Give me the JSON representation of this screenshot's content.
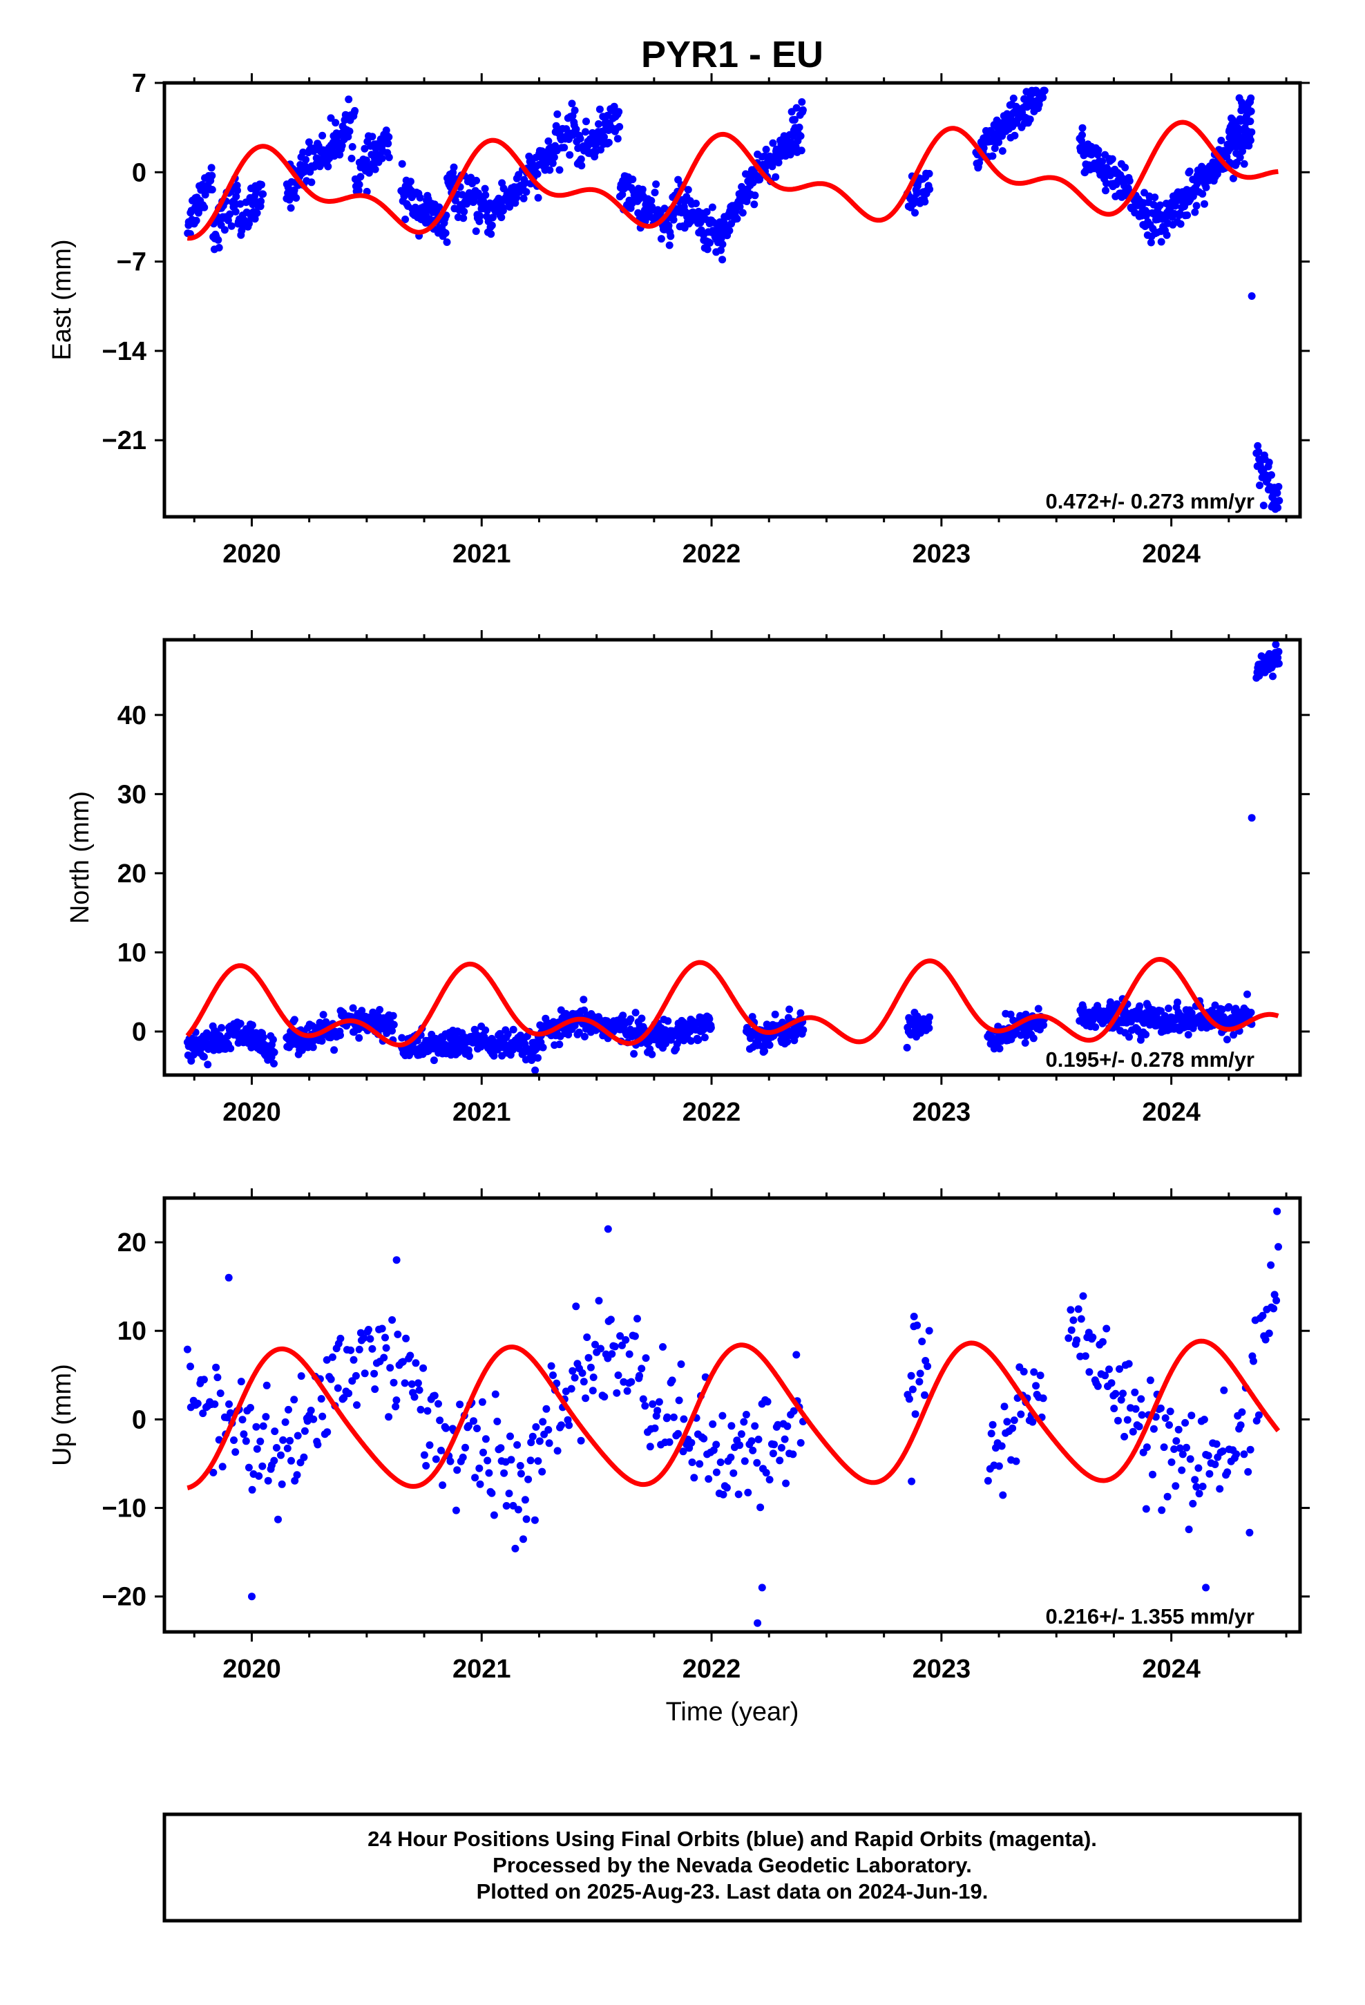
{
  "title": "PYR1 - EU",
  "caption": [
    "24 Hour Positions Using Final Orbits (blue) and Rapid Orbits (magenta).",
    "Processed by the Nevada Geodetic Laboratory.",
    "Plotted on 2025-Aug-23. Last data on 2024-Jun-19."
  ],
  "colors": {
    "data": "#0000ff",
    "model": "#ff0000",
    "frame": "#000000",
    "background": "#ffffff"
  },
  "chart_data": [
    {
      "type": "scatter",
      "name": "east",
      "ylabel": "East (mm)",
      "xlabel": "",
      "xlim": [
        2019.62,
        2024.56
      ],
      "ylim": [
        -27,
        7
      ],
      "yticks": [
        7,
        0,
        -7,
        -14,
        -21
      ],
      "xticks": [
        2020,
        2021,
        2022,
        2023,
        2024
      ],
      "rate": "0.472+/- 0.273 mm/yr",
      "segments": [
        {
          "x": [
            2019.72,
            2020.05
          ],
          "y": [
            [
              -4,
              0
            ],
            [
              -4.8,
              -1.6
            ],
            [
              -4,
              -2
            ]
          ]
        },
        {
          "x": [
            2020.15,
            2020.6
          ],
          "y": [
            [
              -1.5,
              2
            ],
            [
              1,
              4.2
            ],
            [
              -0.5,
              2.5
            ]
          ]
        },
        {
          "x": [
            2020.65,
            2021.05
          ],
          "y": [
            [
              -1.5,
              -4.5
            ],
            [
              -1,
              -3.5
            ]
          ]
        },
        {
          "x": [
            2021.05,
            2021.6
          ],
          "y": [
            [
              -3,
              0
            ],
            [
              0,
              4
            ],
            [
              1.5,
              4.2
            ]
          ]
        },
        {
          "x": [
            2021.6,
            2022.05
          ],
          "y": [
            [
              -1,
              -4.5
            ],
            [
              -2,
              -5.5
            ]
          ]
        },
        {
          "x": [
            2022.05,
            2022.4
          ],
          "y": [
            [
              -4.5,
              1
            ],
            [
              0,
              4
            ]
          ]
        },
        {
          "x": [
            2022.85,
            2022.95
          ],
          "y": [
            [
              -2,
              -1
            ]
          ]
        },
        {
          "x": [
            2023.15,
            2023.45
          ],
          "y": [
            [
              1,
              6.5
            ]
          ]
        },
        {
          "x": [
            2023.6,
            2024.35
          ],
          "y": [
            [
              2,
              -4.5
            ],
            [
              -3.5,
              3
            ]
          ]
        },
        {
          "x": [
            2024.25,
            2024.35
          ],
          "y": [
            [
              3,
              5.5
            ]
          ]
        },
        {
          "x": [
            2024.37,
            2024.47
          ],
          "y": [
            [
              -22.5,
              -25.5
            ]
          ]
        }
      ],
      "outliers": [
        {
          "x": 2024.35,
          "y": -9.7
        }
      ],
      "model": {
        "mean": -0.8,
        "trend": 0.47,
        "t0": 2022.1,
        "a1": 2.5,
        "p1": 0.85,
        "a2": 1.6,
        "p2": 1.3
      }
    },
    {
      "type": "scatter",
      "name": "north",
      "ylabel": "North (mm)",
      "xlabel": "",
      "xlim": [
        2019.62,
        2024.56
      ],
      "ylim": [
        -5.5,
        49.5
      ],
      "yticks": [
        40,
        30,
        20,
        10,
        0
      ],
      "xticks": [
        2020,
        2021,
        2022,
        2023,
        2024
      ],
      "rate": "0.195+/- 0.278 mm/yr",
      "segments": [
        {
          "x": [
            2019.72,
            2020.1
          ],
          "y": [
            [
              -2,
              -1
            ],
            [
              0,
              -2
            ]
          ]
        },
        {
          "x": [
            2020.15,
            2020.62
          ],
          "y": [
            [
              -1,
              0
            ],
            [
              1,
              1
            ]
          ]
        },
        {
          "x": [
            2020.65,
            2021.25
          ],
          "y": [
            [
              -2,
              -1.5
            ],
            [
              -1,
              -2.5
            ]
          ]
        },
        {
          "x": [
            2021.25,
            2021.7
          ],
          "y": [
            [
              -0.5,
              1.5
            ],
            [
              1,
              0
            ]
          ]
        },
        {
          "x": [
            2021.7,
            2022.0
          ],
          "y": [
            [
              -1,
              1
            ]
          ]
        },
        {
          "x": [
            2022.15,
            2022.4
          ],
          "y": [
            [
              -0.5,
              0.5
            ]
          ]
        },
        {
          "x": [
            2022.85,
            2022.95
          ],
          "y": [
            [
              1,
              1
            ]
          ]
        },
        {
          "x": [
            2023.2,
            2023.45
          ],
          "y": [
            [
              -1,
              1.5
            ]
          ]
        },
        {
          "x": [
            2023.6,
            2024.35
          ],
          "y": [
            [
              2,
              1.5
            ],
            [
              1.5,
              1.5
            ]
          ]
        },
        {
          "x": [
            2024.37,
            2024.47
          ],
          "y": [
            [
              45,
              48
            ]
          ]
        }
      ],
      "outliers": [
        {
          "x": 2024.35,
          "y": 27
        }
      ],
      "model": {
        "mean": 2.5,
        "trend": 0.2,
        "t0": 2022.1,
        "a1": 3.6,
        "p1": 1.75,
        "a2": 2.7,
        "p2": 2.3
      }
    },
    {
      "type": "scatter",
      "name": "up",
      "ylabel": "Up (mm)",
      "xlabel": "Time (year)",
      "xlim": [
        2019.62,
        2024.56
      ],
      "ylim": [
        -24,
        25
      ],
      "yticks": [
        20,
        10,
        0,
        -10,
        -20
      ],
      "xticks": [
        2020,
        2021,
        2022,
        2023,
        2024
      ],
      "rate": "0.216+/- 1.355 mm/yr",
      "segments": [
        {
          "x": [
            2019.72,
            2020.15
          ],
          "y": [
            [
              3,
              -5
            ]
          ]
        },
        {
          "x": [
            2020.15,
            2020.62
          ],
          "y": [
            [
              -5,
              7
            ],
            [
              5,
              8
            ]
          ]
        },
        {
          "x": [
            2020.62,
            2021.2
          ],
          "y": [
            [
              6,
              -4
            ],
            [
              -2,
              -8
            ]
          ]
        },
        {
          "x": [
            2021.2,
            2021.6
          ],
          "y": [
            [
              -8,
              5
            ],
            [
              5,
              8
            ]
          ]
        },
        {
          "x": [
            2021.6,
            2022.05
          ],
          "y": [
            [
              7,
              0
            ],
            [
              0,
              -4
            ]
          ]
        },
        {
          "x": [
            2022.05,
            2022.4
          ],
          "y": [
            [
              -6,
              -4
            ],
            [
              -4,
              1
            ]
          ]
        },
        {
          "x": [
            2022.85,
            2022.95
          ],
          "y": [
            [
              5,
              5
            ]
          ]
        },
        {
          "x": [
            2023.2,
            2023.45
          ],
          "y": [
            [
              -5,
              5
            ]
          ]
        },
        {
          "x": [
            2023.55,
            2024.35
          ],
          "y": [
            [
              10,
              3
            ],
            [
              2,
              -6
            ],
            [
              -5,
              -3
            ]
          ]
        },
        {
          "x": [
            2024.35,
            2024.47
          ],
          "y": [
            [
              5,
              17
            ]
          ]
        }
      ],
      "outliers": [
        {
          "x": 2019.9,
          "y": 16
        },
        {
          "x": 2020.0,
          "y": -20
        },
        {
          "x": 2020.63,
          "y": 18
        },
        {
          "x": 2021.55,
          "y": 21.5
        },
        {
          "x": 2022.2,
          "y": -23
        },
        {
          "x": 2022.22,
          "y": -19
        },
        {
          "x": 2024.15,
          "y": -19
        },
        {
          "x": 2024.46,
          "y": 23.5
        },
        {
          "x": 2022.87,
          "y": -7
        },
        {
          "x": 2022.88,
          "y": 10.5
        }
      ],
      "model": {
        "mean": 0.3,
        "trend": 0.22,
        "t0": 2022.1,
        "a1": 7.6,
        "p1": 0.55,
        "a2": 1.0,
        "p2": 0.8
      }
    }
  ]
}
